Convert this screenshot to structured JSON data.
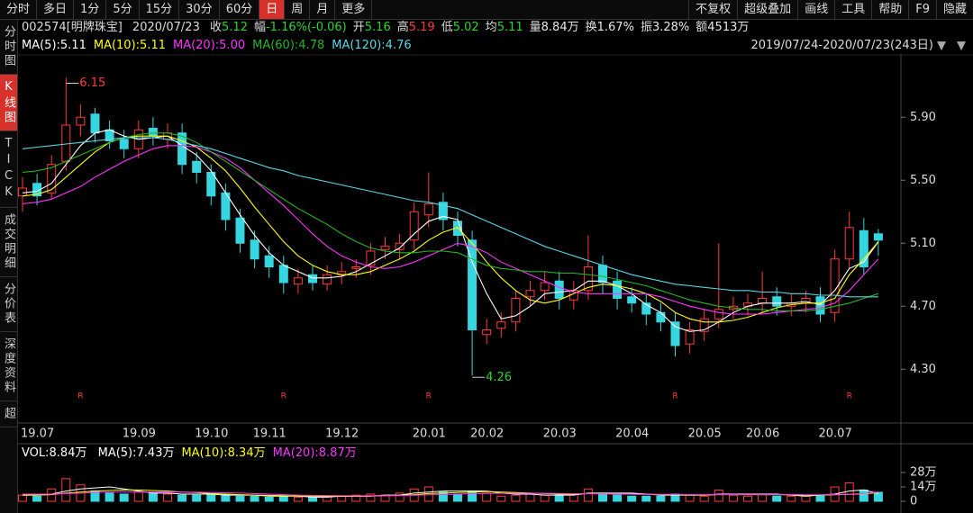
{
  "toolbar": {
    "tabs": [
      "分时",
      "多日",
      "1分",
      "5分",
      "15分",
      "30分",
      "60分",
      "日",
      "周",
      "月",
      "更多"
    ],
    "active_tab": 7,
    "buttons": [
      "不复权",
      "超级叠加",
      "画线",
      "工具",
      "帮助",
      "F9",
      "隐藏"
    ]
  },
  "sidebar": {
    "tabs": [
      "分时图",
      "K线图",
      "TICK",
      "成交明细",
      "分价表",
      "深度资料",
      "超"
    ],
    "active_tab": 1
  },
  "quote": {
    "code": "002574[明牌珠宝]",
    "date": "2020/07/23",
    "items": [
      {
        "label": "收",
        "value": "5.12",
        "color": "#2ed52e"
      },
      {
        "label": "幅",
        "value": "-1.16%(-0.06)",
        "color": "#2ed52e"
      },
      {
        "label": "开",
        "value": "5.16",
        "color": "#2ed52e"
      },
      {
        "label": "高",
        "value": "5.19",
        "color": "#ff3b3b"
      },
      {
        "label": "低",
        "value": "5.02",
        "color": "#2ed52e"
      },
      {
        "label": "均",
        "value": "5.11",
        "color": "#2ed52e"
      },
      {
        "label": "量",
        "value": "8.84万",
        "color": "#e8e8e8"
      },
      {
        "label": "换",
        "value": "1.67%",
        "color": "#e8e8e8"
      },
      {
        "label": "振",
        "value": "3.28%",
        "color": "#e8e8e8"
      },
      {
        "label": "额",
        "value": "4513万",
        "color": "#e8e8e8"
      }
    ]
  },
  "range": "2019/07/24-2020/07/23(243日)",
  "chart_data": [
    {
      "type": "candlestick",
      "categories": [
        "19.07",
        null,
        null,
        null,
        null,
        null,
        null,
        "19.09",
        null,
        null,
        null,
        null,
        "19.10",
        null,
        null,
        null,
        "19.11",
        null,
        null,
        null,
        null,
        "19.12",
        null,
        null,
        null,
        null,
        null,
        "20.01",
        null,
        null,
        null,
        "20.02",
        null,
        null,
        null,
        null,
        "20.03",
        null,
        null,
        null,
        null,
        "20.04",
        null,
        null,
        null,
        null,
        "20.05",
        null,
        null,
        null,
        "20.06",
        null,
        null,
        null,
        null,
        "20.07",
        null,
        null,
        null,
        null
      ],
      "open": [
        5.4,
        5.48,
        5.42,
        5.62,
        5.85,
        5.92,
        5.82,
        5.76,
        5.7,
        5.83,
        5.76,
        5.8,
        5.62,
        5.55,
        5.42,
        5.26,
        5.12,
        5.02,
        4.96,
        4.84,
        4.9,
        4.84,
        4.9,
        4.94,
        4.96,
        5.06,
        5.06,
        5.12,
        5.28,
        5.36,
        5.24,
        5.12,
        4.52,
        4.56,
        4.6,
        4.76,
        4.8,
        4.86,
        4.74,
        4.8,
        4.96,
        4.86,
        4.76,
        4.72,
        4.66,
        4.6,
        4.46,
        4.54,
        4.62,
        4.68,
        4.7,
        4.72,
        4.76,
        4.7,
        4.72,
        4.76,
        4.66,
        5.0,
        5.18,
        5.16
      ],
      "high": [
        5.52,
        5.54,
        5.66,
        6.15,
        5.98,
        5.96,
        5.88,
        5.82,
        5.88,
        5.9,
        5.86,
        5.86,
        5.68,
        5.6,
        5.48,
        5.32,
        5.18,
        5.08,
        5.02,
        4.94,
        4.96,
        4.96,
        4.98,
        5.0,
        5.1,
        5.14,
        5.16,
        5.36,
        5.55,
        5.42,
        5.3,
        5.18,
        4.62,
        4.66,
        4.8,
        4.86,
        4.92,
        4.92,
        4.86,
        5.15,
        5.02,
        4.92,
        4.82,
        4.78,
        4.72,
        4.66,
        4.6,
        4.68,
        5.1,
        4.76,
        4.78,
        4.92,
        4.82,
        4.78,
        4.8,
        4.82,
        5.06,
        5.3,
        5.26,
        5.19
      ],
      "low": [
        5.3,
        5.34,
        5.38,
        5.56,
        5.78,
        5.74,
        5.7,
        5.64,
        5.64,
        5.72,
        5.7,
        5.54,
        5.48,
        5.34,
        5.18,
        5.04,
        4.94,
        4.88,
        4.78,
        4.78,
        4.8,
        4.8,
        4.84,
        4.88,
        4.9,
        5.0,
        5.0,
        5.06,
        5.2,
        5.18,
        5.08,
        4.26,
        4.46,
        4.5,
        4.54,
        4.7,
        4.74,
        4.68,
        4.68,
        4.74,
        4.78,
        4.68,
        4.66,
        4.58,
        4.54,
        4.38,
        4.4,
        4.48,
        4.56,
        4.62,
        4.64,
        4.66,
        4.64,
        4.64,
        4.66,
        4.6,
        4.6,
        4.94,
        4.9,
        5.02
      ],
      "close": [
        5.45,
        5.4,
        5.6,
        5.85,
        5.9,
        5.8,
        5.75,
        5.7,
        5.82,
        5.78,
        5.8,
        5.6,
        5.55,
        5.4,
        5.25,
        5.1,
        5.0,
        4.95,
        4.85,
        4.88,
        4.85,
        4.9,
        4.92,
        4.95,
        5.05,
        5.08,
        5.1,
        5.3,
        5.35,
        5.25,
        5.15,
        4.55,
        4.55,
        4.6,
        4.75,
        4.8,
        4.85,
        4.75,
        4.8,
        4.95,
        4.85,
        4.75,
        4.72,
        4.65,
        4.6,
        4.45,
        4.55,
        4.62,
        4.68,
        4.7,
        4.72,
        4.75,
        4.7,
        4.72,
        4.75,
        4.65,
        5.0,
        5.2,
        4.95,
        5.12
      ],
      "up_color": "#ff3b3b",
      "down_color": "#36d6e0",
      "series": [
        {
          "name": "MA(5):5.11",
          "color": "#ffffff",
          "values": [
            5.42,
            5.43,
            5.48,
            5.6,
            5.72,
            5.8,
            5.82,
            5.78,
            5.76,
            5.77,
            5.78,
            5.72,
            5.66,
            5.56,
            5.42,
            5.28,
            5.15,
            5.04,
            4.96,
            4.92,
            4.88,
            4.88,
            4.89,
            4.92,
            4.97,
            5.02,
            5.07,
            5.16,
            5.24,
            5.27,
            5.25,
            4.98,
            4.78,
            4.62,
            4.64,
            4.7,
            4.78,
            4.79,
            4.8,
            4.86,
            4.86,
            4.83,
            4.78,
            4.71,
            4.66,
            4.57,
            4.54,
            4.55,
            4.6,
            4.66,
            4.7,
            4.72,
            4.72,
            4.72,
            4.73,
            4.71,
            4.8,
            4.94,
            4.98,
            5.11
          ]
        },
        {
          "name": "MA(10):5.11",
          "color": "#ffff00",
          "values": [
            5.4,
            5.41,
            5.44,
            5.52,
            5.6,
            5.68,
            5.74,
            5.77,
            5.78,
            5.78,
            5.78,
            5.75,
            5.71,
            5.64,
            5.56,
            5.45,
            5.33,
            5.22,
            5.11,
            5.02,
            4.96,
            4.92,
            4.9,
            4.9,
            4.92,
            4.96,
            5.0,
            5.05,
            5.12,
            5.17,
            5.2,
            5.1,
            4.98,
            4.88,
            4.8,
            4.74,
            4.72,
            4.74,
            4.78,
            4.82,
            4.84,
            4.83,
            4.81,
            4.78,
            4.73,
            4.66,
            4.62,
            4.6,
            4.6,
            4.61,
            4.63,
            4.66,
            4.69,
            4.71,
            4.72,
            4.72,
            4.75,
            4.9,
            5.0,
            5.11
          ]
        },
        {
          "name": "MA(20):5.00",
          "color": "#ff33ff",
          "values": [
            5.35,
            5.36,
            5.38,
            5.42,
            5.46,
            5.52,
            5.57,
            5.62,
            5.66,
            5.7,
            5.72,
            5.72,
            5.71,
            5.68,
            5.64,
            5.58,
            5.5,
            5.42,
            5.34,
            5.25,
            5.16,
            5.08,
            5.02,
            4.98,
            4.95,
            4.94,
            4.95,
            4.98,
            5.02,
            5.06,
            5.1,
            5.08,
            5.04,
            4.98,
            4.94,
            4.9,
            4.86,
            4.82,
            4.79,
            4.78,
            4.78,
            4.78,
            4.78,
            4.78,
            4.76,
            4.73,
            4.7,
            4.68,
            4.66,
            4.65,
            4.65,
            4.65,
            4.66,
            4.67,
            4.68,
            4.69,
            4.72,
            4.8,
            4.9,
            5.0
          ]
        },
        {
          "name": "MA(60):4.78",
          "color": "#21b821",
          "values": [
            5.55,
            5.56,
            5.58,
            5.62,
            5.66,
            5.7,
            5.74,
            5.77,
            5.79,
            5.8,
            5.8,
            5.78,
            5.74,
            5.68,
            5.62,
            5.56,
            5.5,
            5.44,
            5.38,
            5.32,
            5.27,
            5.22,
            5.16,
            5.11,
            5.07,
            5.05,
            5.04,
            5.04,
            5.05,
            5.05,
            5.04,
            5.0,
            4.96,
            4.94,
            4.93,
            4.92,
            4.92,
            4.91,
            4.91,
            4.9,
            4.89,
            4.87,
            4.85,
            4.83,
            4.8,
            4.77,
            4.74,
            4.72,
            4.7,
            4.69,
            4.68,
            4.68,
            4.67,
            4.67,
            4.67,
            4.68,
            4.7,
            4.72,
            4.75,
            4.78
          ]
        },
        {
          "name": "MA(120):4.76",
          "color": "#58d8e6",
          "values": [
            5.7,
            5.71,
            5.72,
            5.73,
            5.74,
            5.75,
            5.76,
            5.77,
            5.77,
            5.77,
            5.76,
            5.74,
            5.72,
            5.7,
            5.67,
            5.64,
            5.61,
            5.58,
            5.56,
            5.53,
            5.51,
            5.49,
            5.47,
            5.45,
            5.43,
            5.41,
            5.39,
            5.37,
            5.36,
            5.34,
            5.32,
            5.28,
            5.24,
            5.2,
            5.16,
            5.12,
            5.08,
            5.05,
            5.02,
            4.99,
            4.96,
            4.93,
            4.9,
            4.88,
            4.86,
            4.84,
            4.83,
            4.82,
            4.81,
            4.8,
            4.8,
            4.79,
            4.79,
            4.78,
            4.78,
            4.77,
            4.77,
            4.76,
            4.76,
            4.76
          ]
        }
      ],
      "event_labels": [
        null,
        null,
        null,
        null,
        "R",
        null,
        null,
        null,
        null,
        null,
        null,
        null,
        null,
        null,
        null,
        null,
        null,
        null,
        "R",
        null,
        null,
        null,
        null,
        null,
        null,
        null,
        null,
        null,
        "R",
        null,
        null,
        null,
        null,
        null,
        null,
        null,
        null,
        null,
        null,
        null,
        null,
        null,
        null,
        null,
        null,
        "R",
        null,
        null,
        null,
        null,
        null,
        null,
        null,
        null,
        null,
        null,
        null,
        "R",
        null,
        null
      ],
      "event_color": "#ff3b3b",
      "ylim": [
        3.97,
        6.29
      ],
      "yticks": [
        {
          "value": 5.9,
          "label": "5.90"
        },
        {
          "value": 5.5,
          "label": "5.50"
        },
        {
          "value": 5.1,
          "label": "5.10"
        },
        {
          "value": 4.7,
          "label": "4.70"
        },
        {
          "value": 4.3,
          "label": "4.30"
        }
      ],
      "grid": false
    },
    {
      "type": "volume",
      "legend": "VOL:8.84万",
      "values": [
        6,
        5,
        12,
        22,
        16,
        10,
        8,
        7,
        9,
        8,
        7,
        6,
        6,
        7,
        6,
        5,
        5,
        4,
        5,
        4,
        4,
        5,
        5,
        6,
        7,
        6,
        8,
        12,
        14,
        9,
        7,
        10,
        8,
        5,
        6,
        7,
        6,
        6,
        7,
        12,
        8,
        6,
        5,
        5,
        5,
        7,
        6,
        5,
        11,
        6,
        5,
        7,
        5,
        5,
        5,
        6,
        14,
        18,
        11,
        8.84
      ],
      "series": [
        {
          "name": "MA(5):7.43万",
          "color": "#ffffff",
          "values": [
            6,
            6,
            7,
            10,
            12,
            13,
            14,
            12,
            10,
            8,
            8,
            7,
            7,
            7,
            6,
            6,
            6,
            5,
            5,
            5,
            4,
            4,
            5,
            5,
            5,
            6,
            6,
            8,
            9,
            10,
            10,
            10,
            10,
            8,
            7,
            7,
            6,
            6,
            6,
            8,
            8,
            8,
            8,
            7,
            6,
            6,
            6,
            6,
            7,
            7,
            7,
            7,
            7,
            6,
            5,
            6,
            7,
            10,
            11,
            7.43
          ]
        },
        {
          "name": "MA(10):8.34万",
          "color": "#ffff00",
          "values": [
            6,
            6,
            6.5,
            8,
            9,
            10,
            10.5,
            11,
            11,
            10.5,
            10,
            9,
            8.5,
            7.5,
            7,
            6.5,
            6,
            5.8,
            5.5,
            5.2,
            5,
            4.8,
            4.8,
            5,
            5.2,
            5.4,
            5.8,
            6.5,
            7.5,
            8,
            8.5,
            9,
            9.5,
            9,
            8.5,
            8,
            7.5,
            7,
            6.8,
            7.5,
            7.5,
            7.2,
            7,
            6.8,
            6.6,
            6.5,
            6.2,
            6,
            6.5,
            6.5,
            6.5,
            6.5,
            6.5,
            6.3,
            6,
            6,
            6.3,
            6.8,
            7.2,
            8.34
          ]
        },
        {
          "name": "MA(20):8.87万",
          "color": "#ff33ff",
          "values": [
            7,
            7,
            7,
            7.5,
            8,
            8.5,
            9,
            9,
            9,
            9,
            9,
            9,
            8.8,
            8.5,
            8.2,
            8,
            7.5,
            7,
            6.5,
            6,
            5.8,
            5.6,
            5.5,
            5.4,
            5.4,
            5.4,
            5.6,
            5.9,
            6.3,
            6.6,
            7,
            7.4,
            7.7,
            7.8,
            7.8,
            7.8,
            7.8,
            7.6,
            7.4,
            7.4,
            7.2,
            7,
            6.9,
            6.8,
            6.7,
            6.7,
            6.6,
            6.5,
            6.6,
            6.6,
            6.5,
            6.5,
            6.5,
            6.5,
            6.4,
            6.4,
            6.6,
            7,
            7.5,
            8.87
          ]
        }
      ],
      "ylim": [
        0,
        33.25
      ],
      "yticks": [
        {
          "value": 28,
          "label": "28万"
        },
        {
          "value": 14,
          "label": "14万"
        },
        0
      ]
    }
  ]
}
